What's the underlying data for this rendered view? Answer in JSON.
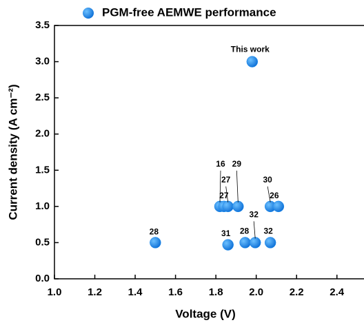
{
  "chart_data": {
    "type": "scatter",
    "title": "PGM-free AEMWE performance",
    "x_label": "Voltage (V)",
    "y_label": "Current density (A cm⁻²)",
    "series": [
      {
        "name": "PGM-free AEMWE performance",
        "color": "#1a8cf0",
        "x": [
          1.5,
          1.82,
          1.84,
          1.86,
          1.91,
          2.07,
          2.11,
          1.86,
          1.945,
          1.995,
          2.07,
          1.98
        ],
        "values": [
          0.5,
          1.0,
          1.0,
          1.0,
          1.0,
          1.0,
          1.0,
          0.47,
          0.5,
          0.5,
          0.5,
          3.0
        ],
        "point_labels": [
          "28",
          "16",
          "27",
          "27",
          "29",
          "30",
          "26",
          "31",
          "28",
          "32",
          "32",
          "This work"
        ]
      }
    ],
    "xlim": [
      1.0,
      2.5
    ],
    "ylim": [
      0.0,
      3.5
    ],
    "xticks": [
      {
        "value": 1.0,
        "label": "1.0"
      },
      {
        "value": 1.2,
        "label": "1.2"
      },
      {
        "value": 1.4,
        "label": "1.4"
      },
      {
        "value": 1.6,
        "label": "1.6"
      },
      {
        "value": 1.8,
        "label": "1.8"
      },
      {
        "value": 2.0,
        "label": "2.0"
      },
      {
        "value": 2.2,
        "label": "2.2"
      },
      {
        "value": 2.4,
        "label": "2.4"
      }
    ],
    "yticks": [
      {
        "value": 0.0,
        "label": "0.0"
      },
      {
        "value": 0.5,
        "label": "0.5"
      },
      {
        "value": 1.0,
        "label": "1.0"
      },
      {
        "value": 1.5,
        "label": "1.5"
      },
      {
        "value": 2.0,
        "label": "2.0"
      },
      {
        "value": 2.5,
        "label": "2.5"
      },
      {
        "value": 3.0,
        "label": "3.0"
      },
      {
        "value": 3.5,
        "label": "3.5"
      }
    ]
  }
}
